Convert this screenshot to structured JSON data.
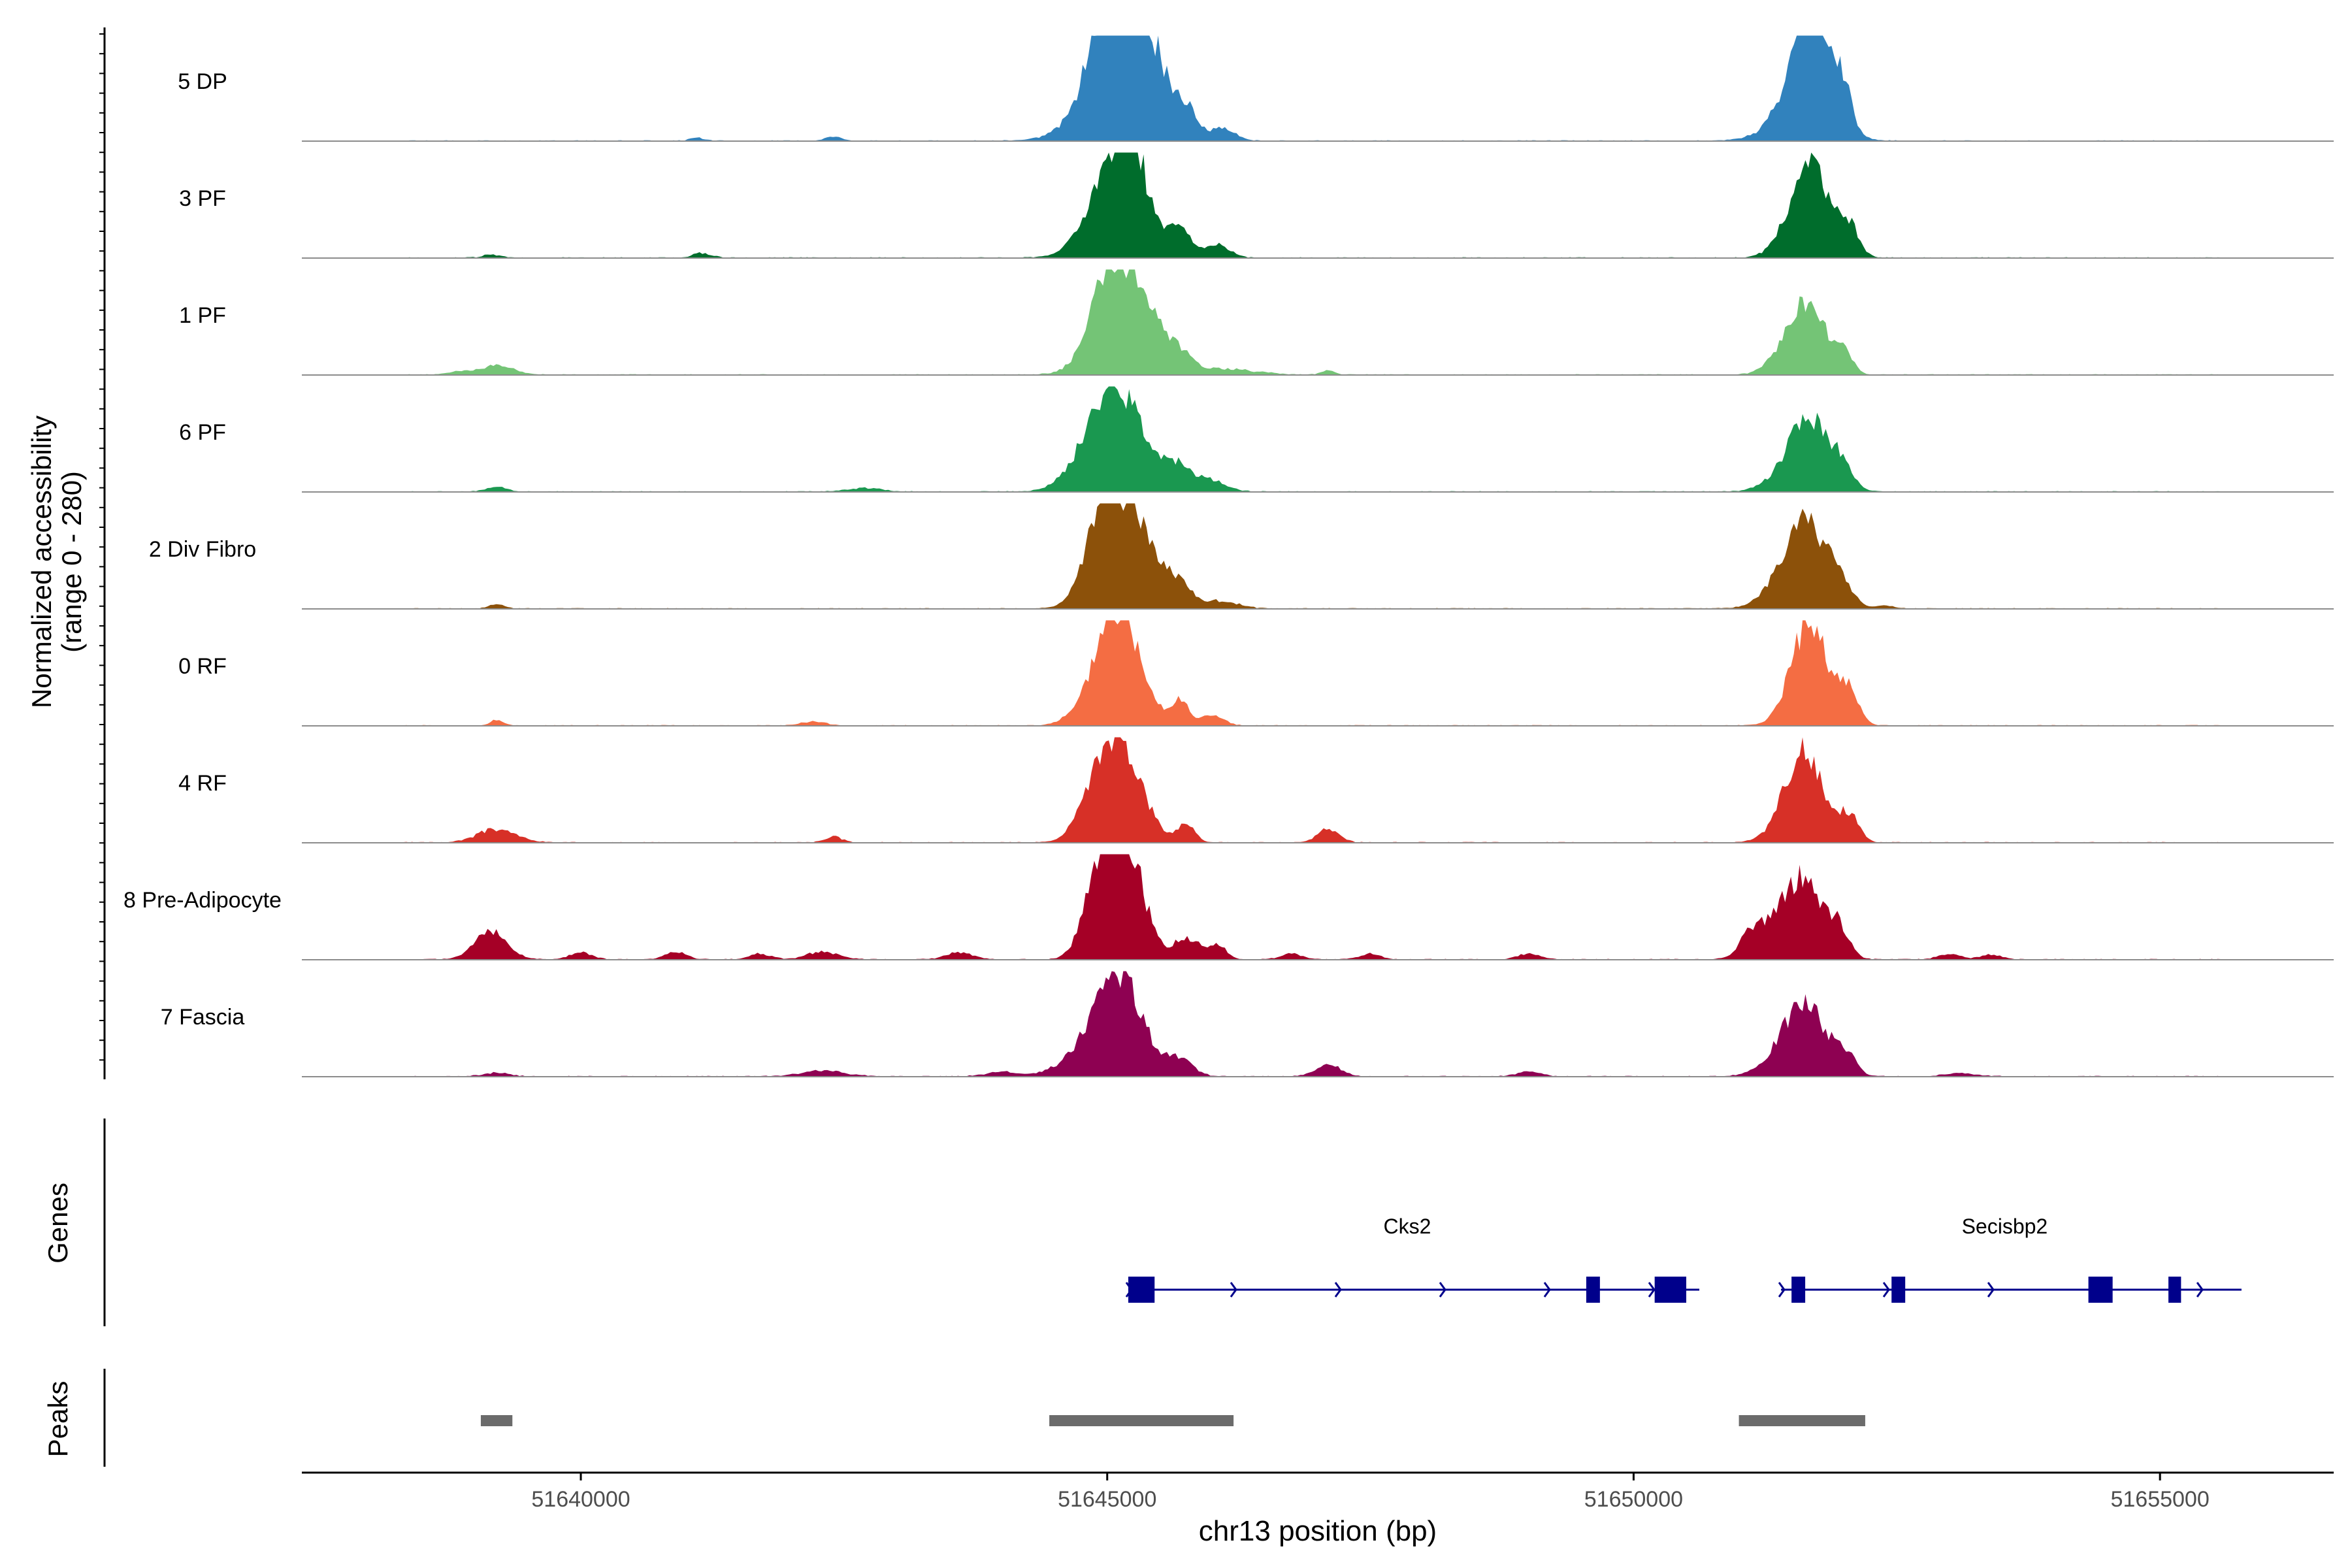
{
  "chart_data": {
    "type": "coverage-track",
    "ylabel_line1": "Normalized accessibility",
    "ylabel_line2": "(range 0 - 280)",
    "ylim": [
      0,
      280
    ],
    "xlabel": "chr13 position (bp)",
    "xlim": [
      51637350,
      51656650
    ],
    "xticks": [
      51640000,
      51645000,
      51650000,
      51655000
    ],
    "xtick_labels": [
      "51640000",
      "51645000",
      "51650000",
      "51655000"
    ],
    "tracks": [
      {
        "name": "5 DP",
        "color": "#3182bd",
        "peaks": [
          [
            51645100,
            130,
            320
          ],
          [
            51645250,
            260,
            260
          ],
          [
            51645000,
            150,
            170
          ],
          [
            51645750,
            50,
            90
          ],
          [
            51646100,
            30,
            120
          ],
          [
            51651700,
            250,
            180
          ],
          [
            51651600,
            100,
            250
          ],
          [
            51652000,
            80,
            80
          ],
          [
            51641100,
            8,
            60
          ],
          [
            51642400,
            10,
            80
          ]
        ]
      },
      {
        "name": "3 PF",
        "color": "#006d2c",
        "peaks": [
          [
            51645150,
            180,
            260
          ],
          [
            51645200,
            170,
            130
          ],
          [
            51644950,
            60,
            200
          ],
          [
            51645700,
            60,
            100
          ],
          [
            51646050,
            35,
            110
          ],
          [
            51651700,
            200,
            180
          ],
          [
            51651550,
            60,
            170
          ],
          [
            51652050,
            70,
            90
          ],
          [
            51641150,
            12,
            90
          ],
          [
            51639150,
            8,
            80
          ]
        ]
      },
      {
        "name": "1 PF",
        "color": "#74c476",
        "peaks": [
          [
            51645200,
            250,
            260
          ],
          [
            51645000,
            110,
            160
          ],
          [
            51645700,
            30,
            100
          ],
          [
            51646100,
            15,
            300
          ],
          [
            51651650,
            190,
            170
          ],
          [
            51652000,
            60,
            80
          ],
          [
            51651400,
            30,
            150
          ],
          [
            51639200,
            25,
            150
          ],
          [
            51647100,
            12,
            60
          ],
          [
            51638850,
            8,
            100
          ]
        ]
      },
      {
        "name": "6 PF",
        "color": "#1a9850",
        "peaks": [
          [
            51645150,
            210,
            280
          ],
          [
            51644950,
            90,
            180
          ],
          [
            51645700,
            40,
            100
          ],
          [
            51645950,
            30,
            160
          ],
          [
            51651700,
            170,
            180
          ],
          [
            51651500,
            50,
            200
          ],
          [
            51652000,
            50,
            90
          ],
          [
            51639200,
            12,
            100
          ],
          [
            51642700,
            10,
            150
          ],
          [
            51644600,
            15,
            120
          ]
        ]
      },
      {
        "name": "2 Div Fibro",
        "color": "#8c510a",
        "peaks": [
          [
            51645050,
            240,
            200
          ],
          [
            51645300,
            150,
            160
          ],
          [
            51644850,
            60,
            130
          ],
          [
            51645650,
            70,
            150
          ],
          [
            51646100,
            20,
            150
          ],
          [
            51651650,
            200,
            180
          ],
          [
            51651450,
            60,
            200
          ],
          [
            51651950,
            60,
            120
          ],
          [
            51639200,
            12,
            70
          ],
          [
            51652400,
            8,
            80
          ]
        ]
      },
      {
        "name": "0 RF",
        "color": "#f46d43",
        "peaks": [
          [
            51645150,
            230,
            210
          ],
          [
            51645000,
            120,
            170
          ],
          [
            51645700,
            60,
            80
          ],
          [
            51646000,
            30,
            100
          ],
          [
            51651700,
            230,
            160
          ],
          [
            51651550,
            70,
            150
          ],
          [
            51652050,
            90,
            90
          ],
          [
            51639200,
            15,
            60
          ],
          [
            51642200,
            10,
            120
          ],
          [
            51644600,
            10,
            100
          ]
        ]
      },
      {
        "name": "4 RF",
        "color": "#d73027",
        "peaks": [
          [
            51645150,
            210,
            200
          ],
          [
            51645000,
            100,
            170
          ],
          [
            51644800,
            40,
            140
          ],
          [
            51645750,
            50,
            80
          ],
          [
            51647100,
            35,
            100
          ],
          [
            51651650,
            200,
            170
          ],
          [
            51651500,
            60,
            180
          ],
          [
            51652050,
            70,
            90
          ],
          [
            51639200,
            35,
            180
          ],
          [
            51642400,
            15,
            80
          ]
        ]
      },
      {
        "name": "8 Pre-Adipocyte",
        "color": "#a50026",
        "peaks": [
          [
            51645200,
            260,
            160
          ],
          [
            51645000,
            180,
            140
          ],
          [
            51644850,
            90,
            130
          ],
          [
            51645750,
            60,
            120
          ],
          [
            51646050,
            40,
            80
          ],
          [
            51651650,
            170,
            150
          ],
          [
            51651400,
            110,
            200
          ],
          [
            51651100,
            50,
            100
          ],
          [
            51651950,
            80,
            100
          ],
          [
            51639150,
            75,
            150
          ],
          [
            51640000,
            20,
            100
          ],
          [
            51640900,
            20,
            100
          ],
          [
            51641700,
            15,
            100
          ],
          [
            51642300,
            20,
            150
          ],
          [
            51643600,
            20,
            120
          ],
          [
            51646750,
            15,
            100
          ],
          [
            51647500,
            15,
            100
          ],
          [
            51649000,
            15,
            100
          ],
          [
            51653000,
            15,
            100
          ],
          [
            51653400,
            12,
            100
          ]
        ]
      },
      {
        "name": "7 Fascia",
        "color": "#8e0152",
        "peaks": [
          [
            51645150,
            200,
            220
          ],
          [
            51645000,
            100,
            170
          ],
          [
            51644700,
            40,
            200
          ],
          [
            51645700,
            40,
            120
          ],
          [
            51647100,
            30,
            120
          ],
          [
            51651650,
            160,
            180
          ],
          [
            51651450,
            60,
            200
          ],
          [
            51652000,
            60,
            100
          ],
          [
            51639200,
            10,
            120
          ],
          [
            51642300,
            15,
            200
          ],
          [
            51644000,
            12,
            150
          ],
          [
            51649000,
            12,
            120
          ],
          [
            51653100,
            8,
            150
          ]
        ]
      }
    ],
    "genes_label": "Genes",
    "genes": [
      {
        "name": "Cks2",
        "start": 51645200,
        "end": 51650500,
        "exons": [
          [
            51645200,
            51645450
          ],
          [
            51649550,
            51649680
          ],
          [
            51650200,
            51650500
          ]
        ]
      },
      {
        "name": "Secisbp2",
        "start": 51651400,
        "end": 51655650,
        "exons": [
          [
            51651500,
            51651630
          ],
          [
            51652450,
            51652580
          ],
          [
            51654320,
            51654550
          ],
          [
            51655080,
            51655200
          ]
        ]
      }
    ],
    "peaks_label": "Peaks",
    "peak_regions": [
      [
        51639050,
        51639350
      ],
      [
        51644450,
        51646200
      ],
      [
        51651000,
        51652200
      ]
    ]
  }
}
